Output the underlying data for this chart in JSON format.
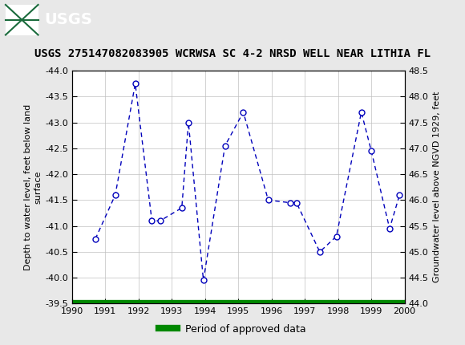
{
  "title": "USGS 275147082083905 WCRWSA SC 4-2 NRSD WELL NEAR LITHIA FL",
  "ylabel_left": "Depth to water level, feet below land\nsurface",
  "ylabel_right": "Groundwater level above NGVD 1929, feet",
  "x_data": [
    1990.7,
    1991.3,
    1991.9,
    1992.4,
    1992.65,
    1993.3,
    1993.5,
    1993.95,
    1994.6,
    1995.15,
    1995.9,
    1996.55,
    1996.75,
    1997.45,
    1997.95,
    1998.7,
    1999.0,
    1999.55,
    1999.85
  ],
  "y_data": [
    -40.75,
    -41.6,
    -43.75,
    -41.1,
    -41.1,
    -41.35,
    -43.0,
    -39.95,
    -42.55,
    -43.2,
    -41.5,
    -41.45,
    -41.45,
    -40.5,
    -40.8,
    -43.2,
    -42.45,
    -40.95,
    -41.6
  ],
  "xlim": [
    1990,
    2000
  ],
  "ylim_left_bottom": -39.5,
  "ylim_left_top": -44.0,
  "ylim_right_bottom": 44.0,
  "ylim_right_top": 48.5,
  "xticks": [
    1990,
    1991,
    1992,
    1993,
    1994,
    1995,
    1996,
    1997,
    1998,
    1999,
    2000
  ],
  "yticks_left": [
    -44.0,
    -43.5,
    -43.0,
    -42.5,
    -42.0,
    -41.5,
    -41.0,
    -40.5,
    -40.0,
    -39.5
  ],
  "yticks_right": [
    48.5,
    48.0,
    47.5,
    47.0,
    46.5,
    46.0,
    45.5,
    45.0,
    44.5,
    44.0
  ],
  "line_color": "#0000BB",
  "marker_facecolor": "#ffffff",
  "marker_edgecolor": "#0000BB",
  "green_bar_color": "#008800",
  "header_bg_color": "#1a6b3c",
  "header_text_color": "#ffffff",
  "figure_bg_color": "#e8e8e8",
  "plot_bg_color": "#ffffff",
  "grid_color": "#c0c0c0",
  "legend_label": "Period of approved data",
  "title_fontsize": 10,
  "axis_label_fontsize": 8,
  "tick_fontsize": 8,
  "legend_fontsize": 9
}
